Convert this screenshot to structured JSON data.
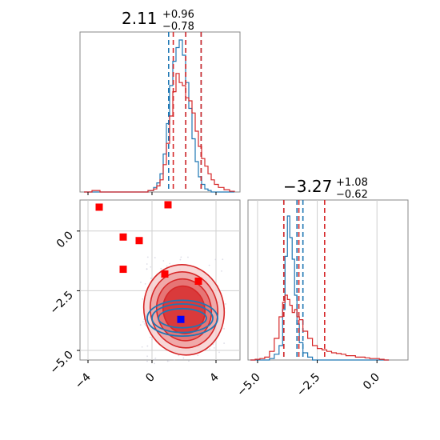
{
  "chart_data": [
    {
      "type": "histogram",
      "panel": "marginal-param-1",
      "title": {
        "value": "2.11",
        "plus": "+0.96",
        "minus": "−0.78"
      },
      "xlim": [
        -4.5,
        5.5
      ],
      "bin_centers": [
        -4.0,
        -3.5,
        -3.0,
        -2.5,
        -2.0,
        -1.5,
        -1.0,
        -0.5,
        0.0,
        0.2,
        0.4,
        0.6,
        0.8,
        1.0,
        1.2,
        1.4,
        1.6,
        1.8,
        2.0,
        2.2,
        2.4,
        2.6,
        2.8,
        3.0,
        3.2,
        3.4,
        3.6,
        3.8,
        4.0,
        4.3,
        4.7,
        5.0
      ],
      "series": [
        {
          "color": "#1f77b4",
          "values": [
            0,
            0,
            0,
            0,
            0,
            0,
            0,
            0,
            0.01,
            0.03,
            0.06,
            0.12,
            0.25,
            0.45,
            0.7,
            0.86,
            0.95,
            1.0,
            0.9,
            0.72,
            0.55,
            0.35,
            0.2,
            0.1,
            0.05,
            0.02,
            0.01,
            0,
            0,
            0,
            0,
            0
          ],
          "quantile_lines": [
            1.04,
            2.11,
            3.07
          ]
        },
        {
          "color": "#d62728",
          "values": [
            0,
            0.01,
            0,
            0,
            0,
            0,
            0,
            0,
            0.01,
            0.02,
            0.04,
            0.08,
            0.18,
            0.32,
            0.5,
            0.66,
            0.78,
            0.72,
            0.7,
            0.62,
            0.6,
            0.52,
            0.4,
            0.3,
            0.22,
            0.17,
            0.12,
            0.08,
            0.05,
            0.03,
            0.015,
            0.005
          ],
          "quantile_lines": [
            1.33,
            2.11,
            3.07
          ]
        }
      ]
    },
    {
      "type": "histogram",
      "panel": "marginal-param-2",
      "title": {
        "value": "−3.27",
        "plus": "+1.08",
        "minus": "−0.62"
      },
      "xlim": [
        -5.4,
        1.3
      ],
      "xticks": [
        "−5.0",
        "−2.5",
        "0.0"
      ],
      "bin_centers": [
        -5.2,
        -5.0,
        -4.8,
        -4.6,
        -4.4,
        -4.2,
        -4.0,
        -3.9,
        -3.8,
        -3.7,
        -3.6,
        -3.5,
        -3.4,
        -3.3,
        -3.2,
        -3.0,
        -2.8,
        -2.6,
        -2.4,
        -2.2,
        -2.0,
        -1.8,
        -1.6,
        -1.4,
        -1.2,
        -1.0,
        -0.8,
        -0.6,
        -0.4,
        -0.2,
        0.0,
        0.2,
        0.4
      ],
      "series": [
        {
          "color": "#1f77b4",
          "values": [
            0,
            0,
            0,
            0,
            0.01,
            0.04,
            0.1,
            0.35,
            0.72,
            1.0,
            0.85,
            0.7,
            0.45,
            0.25,
            0.12,
            0.05,
            0.02,
            0,
            0,
            0,
            0,
            0,
            0,
            0,
            0,
            0,
            0,
            0,
            0,
            0,
            0,
            0,
            0
          ],
          "quantile_lines": [
            -3.9,
            -3.35,
            -3.1
          ]
        },
        {
          "color": "#d62728",
          "values": [
            0,
            0.005,
            0.01,
            0.02,
            0.06,
            0.15,
            0.3,
            0.4,
            0.45,
            0.42,
            0.38,
            0.33,
            0.35,
            0.3,
            0.28,
            0.2,
            0.15,
            0.1,
            0.08,
            0.07,
            0.06,
            0.05,
            0.045,
            0.04,
            0.03,
            0.03,
            0.02,
            0.02,
            0.015,
            0.01,
            0.01,
            0.005,
            0
          ],
          "quantile_lines": [
            -3.9,
            -3.27,
            -2.19
          ]
        }
      ]
    },
    {
      "type": "scatter",
      "panel": "joint",
      "xlim": [
        -4.5,
        5.5
      ],
      "ylim": [
        -5.4,
        1.3
      ],
      "xticks": [
        "−4",
        "0",
        "4"
      ],
      "yticks": [
        "−5.0",
        "−2.5",
        "0.0"
      ],
      "markers": {
        "color": "#ff0000",
        "points": [
          [
            -3.3,
            1.0
          ],
          [
            -1.8,
            -0.25
          ],
          [
            -0.8,
            -0.4
          ],
          [
            1.0,
            1.1
          ],
          [
            -1.8,
            -1.6
          ],
          [
            0.8,
            -1.8
          ],
          [
            2.9,
            -2.1
          ]
        ]
      },
      "truth": {
        "color": "#0000ff",
        "x": 1.8,
        "y": -3.7
      },
      "contours": [
        {
          "color": "#d62728",
          "center": [
            2.0,
            -3.3
          ],
          "levels": [
            [
              1.3,
              1.0
            ],
            [
              1.7,
              1.3
            ],
            [
              2.1,
              1.6
            ],
            [
              2.5,
              1.9
            ]
          ]
        },
        {
          "color": "#1f77b4",
          "center": [
            1.9,
            -3.65
          ],
          "levels": [
            [
              1.5,
              0.4
            ],
            [
              1.9,
              0.6
            ],
            [
              2.2,
              0.75
            ]
          ]
        }
      ]
    }
  ]
}
